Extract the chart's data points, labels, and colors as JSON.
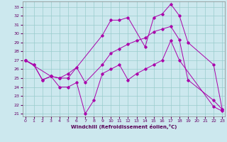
{
  "xlabel": "Windchill (Refroidissement éolien,°C)",
  "bg_color": "#cce8ee",
  "line_color": "#aa00aa",
  "grid_color": "#99cccc",
  "xticks": [
    0,
    1,
    2,
    3,
    4,
    5,
    6,
    7,
    8,
    9,
    10,
    11,
    12,
    13,
    14,
    15,
    16,
    17,
    18,
    19,
    20,
    21,
    22,
    23
  ],
  "yticks": [
    21,
    22,
    23,
    24,
    25,
    26,
    27,
    28,
    29,
    30,
    31,
    32,
    33
  ],
  "line_zigzag_x": [
    0,
    1,
    2,
    3,
    4,
    5,
    6,
    7,
    8,
    9,
    10,
    11,
    12,
    13,
    14,
    15,
    16,
    17,
    18,
    22,
    23
  ],
  "line_zigzag_y": [
    27.0,
    26.5,
    24.8,
    25.2,
    24.0,
    24.0,
    24.5,
    21.0,
    22.5,
    25.5,
    26.0,
    26.5,
    24.8,
    25.5,
    26.0,
    26.5,
    27.0,
    29.2,
    27.0,
    21.8,
    21.3
  ],
  "line_upper_x": [
    0,
    1,
    2,
    3,
    4,
    5,
    9,
    10,
    11,
    12,
    14,
    15,
    16,
    17,
    18,
    19,
    22,
    23
  ],
  "line_upper_y": [
    27.0,
    26.5,
    24.8,
    25.2,
    25.0,
    25.0,
    29.8,
    31.5,
    31.5,
    31.8,
    28.5,
    31.8,
    32.2,
    33.3,
    32.0,
    29.0,
    26.5,
    21.5
  ],
  "line_mid_x": [
    0,
    3,
    4,
    5,
    6,
    7,
    9,
    10,
    11,
    12,
    13,
    14,
    15,
    16,
    17,
    18,
    19,
    22,
    23
  ],
  "line_mid_y": [
    27.0,
    25.2,
    25.0,
    25.5,
    26.2,
    24.5,
    26.5,
    27.8,
    28.3,
    28.8,
    29.2,
    29.5,
    30.2,
    30.5,
    30.8,
    29.3,
    24.8,
    22.5,
    21.5
  ]
}
